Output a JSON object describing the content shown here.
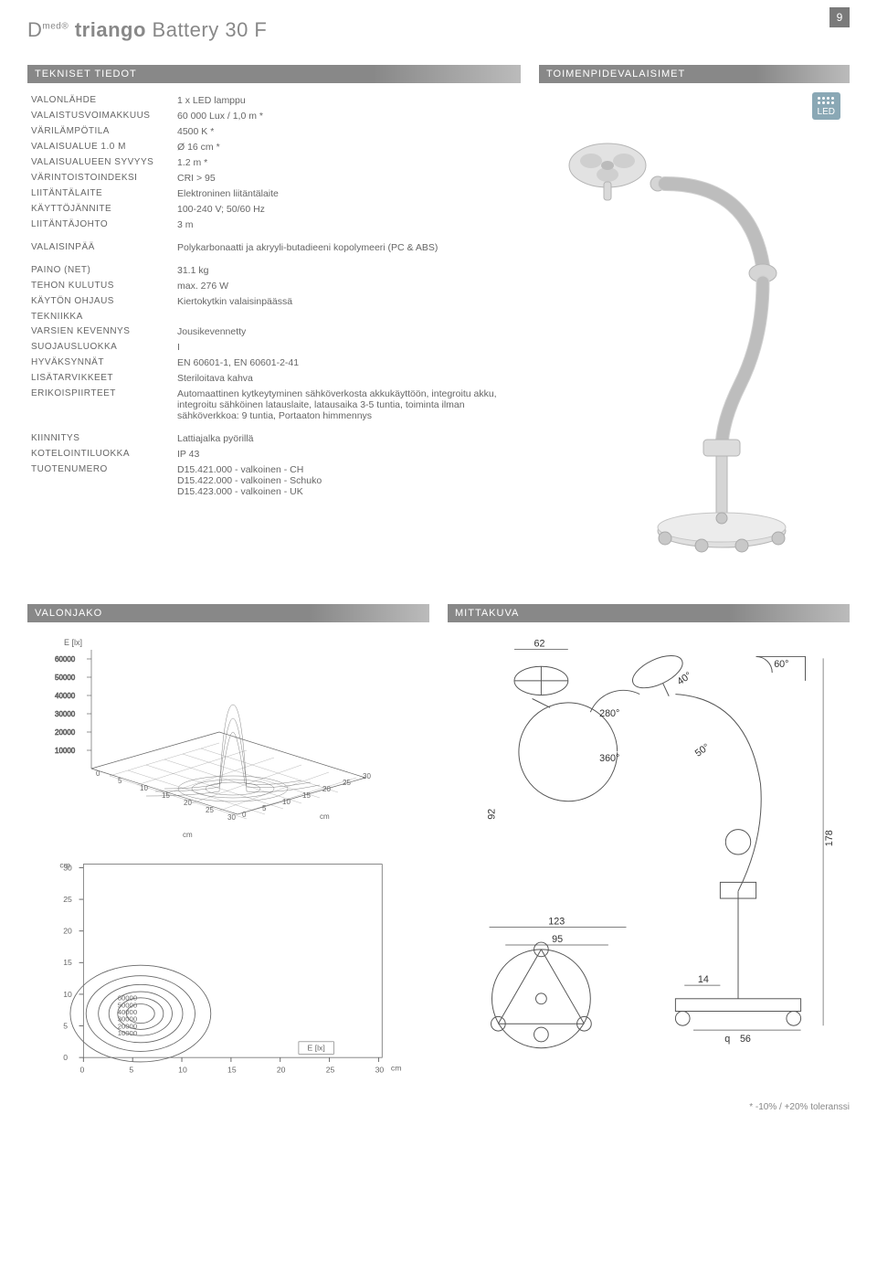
{
  "page_number": "9",
  "title_brand": "D",
  "title_sup": "med®",
  "title_bold": "triango",
  "title_rest": "Battery 30 F",
  "headers": {
    "specs": "TEKNISET TIEDOT",
    "right": "TOIMENPIDEVALAISIMET",
    "light_dist": "VALONJAKO",
    "dim_drawing": "MITTAKUVA"
  },
  "led_label": "LED",
  "specs": [
    {
      "label": "VALONLÄHDE",
      "value": "1 x LED lamppu"
    },
    {
      "label": "VALAISTUSVOIMAKKUUS",
      "value": "60 000 Lux / 1,0 m *"
    },
    {
      "label": "VÄRILÄMPÖTILA",
      "value": "4500 K *"
    },
    {
      "label": "VALAISUALUE 1.0 M",
      "value": "Ø 16 cm *"
    },
    {
      "label": "VALAISUALUEEN SYVYYS",
      "value": "1.2 m *"
    },
    {
      "label": "VÄRINTOISTOINDEKSI",
      "value": "CRI > 95"
    },
    {
      "label": "LIITÄNTÄLAITE",
      "value": "Elektroninen liitäntälaite"
    },
    {
      "label": "KÄYTTÖJÄNNITE",
      "value": "100-240 V; 50/60 Hz"
    },
    {
      "label": "LIITÄNTÄJOHTO",
      "value": "3 m"
    }
  ],
  "specs2": [
    {
      "label": "VALAISINPÄÄ",
      "value": "Polykarbonaatti ja akryyli-butadieeni kopolymeeri (PC & ABS)"
    }
  ],
  "specs3": [
    {
      "label": "PAINO (NET)",
      "value": "31.1 kg"
    },
    {
      "label": "TEHON KULUTUS",
      "value": "max. 276 W"
    },
    {
      "label": "KÄYTÖN OHJAUS",
      "value": "Kiertokytkin valaisinpäässä"
    },
    {
      "label": "TEKNIIKKA",
      "value": ""
    },
    {
      "label": "VARSIEN KEVENNYS",
      "value": "Jousikevennetty"
    },
    {
      "label": "SUOJAUSLUOKKA",
      "value": "I"
    },
    {
      "label": "HYVÄKSYNNÄT",
      "value": "EN 60601-1, EN 60601-2-41"
    },
    {
      "label": "LISÄTARVIKKEET",
      "value": "Steriloitava kahva"
    },
    {
      "label": "ERIKOISPIIRTEET",
      "value": "Automaattinen kytkeytyminen sähköverkosta akkukäyttöön, integroitu akku, integroitu sähköinen latauslaite, latausaika 3-5 tuntia, toiminta ilman sähköverkkoa: 9 tuntia, Portaaton himmennys"
    }
  ],
  "specs4": [
    {
      "label": "KIINNITYS",
      "value": "Lattiajalka pyörillä"
    },
    {
      "label": "KOTELOINTILUOKKA",
      "value": "IP 43"
    },
    {
      "label": "TUOTENUMERO",
      "value": "D15.421.000 - valkoinen - CH\nD15.422.000 - valkoinen - Schuko\nD15.423.000 - valkoinen - UK"
    }
  ],
  "chart_3d": {
    "type": "surface",
    "ylabel": "E [lx]",
    "yticks": [
      "60000",
      "50000",
      "40000",
      "30000",
      "20000",
      "10000"
    ],
    "xticks_a": [
      "0",
      "5",
      "10",
      "15",
      "20",
      "25",
      "30"
    ],
    "xticks_b": [
      "0",
      "5",
      "10",
      "15",
      "20",
      "25",
      "30"
    ],
    "x_unit": "cm",
    "colors": {
      "wire": "#666666",
      "bg": "#ffffff"
    }
  },
  "contour": {
    "type": "contour",
    "y_axis": {
      "unit": "cm",
      "ticks": [
        "30",
        "25",
        "20",
        "15",
        "10",
        "5",
        "0"
      ]
    },
    "x_axis": {
      "unit": "cm",
      "ticks": [
        "0",
        "5",
        "10",
        "15",
        "20",
        "25",
        "30"
      ]
    },
    "levels": [
      "60000",
      "50000",
      "40000",
      "30000",
      "20000",
      "10000"
    ],
    "corner_label": "E [lx]",
    "colors": {
      "line": "#666666",
      "bg": "#ffffff"
    }
  },
  "dimensions": {
    "values": {
      "d62": "62",
      "d280": "280°",
      "d40": "40°",
      "d60": "60°",
      "d360": "360°",
      "d50": "50°",
      "d92": "92",
      "d178": "178",
      "d123": "123",
      "d95": "95",
      "d14": "14",
      "dq56": "56",
      "dq56_prefix": "q"
    },
    "colors": {
      "line": "#555555",
      "bg": "#ffffff"
    }
  },
  "footnote": "* -10% / +20% toleranssi"
}
